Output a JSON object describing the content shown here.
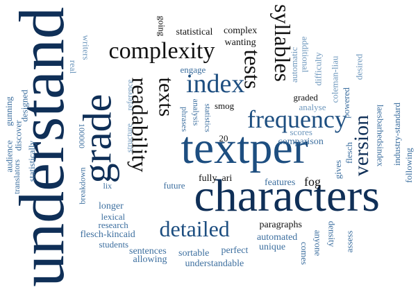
{
  "cloud": {
    "words": {
      "understand": "understand",
      "characters": "characters",
      "textper": "textper",
      "grade": "grade",
      "complexity": "complexity",
      "index": "index",
      "frequency": "frequency",
      "readability": "readability",
      "texts": "texts",
      "tests": "tests",
      "syllables": "syllables",
      "detailed": "detailed",
      "version": "version",
      "statistical": "statistical",
      "complex": "complex",
      "wanting": "wanting",
      "going": "going",
      "writers": "writers",
      "real": "real",
      "engage": "engage",
      "reference": "reference",
      "structure": "structure",
      "statistics": "statistics",
      "analysis": "analysis",
      "phrases": "phrases",
      "smog": "smog",
      "designed": "designed",
      "gunning": "gunning",
      "audience": "audience",
      "translators": "translators",
      "discover": "discover",
      "statistically": "statistically",
      "n100000": "100000",
      "breakdown": "breakdown",
      "lix": "lix",
      "longer": "longer",
      "lexical": "lexical",
      "research": "research",
      "flesch_kincaid": "flesch-kincaid",
      "students": "students",
      "sentences": "sentences",
      "allowing": "allowing",
      "sortable": "sortable",
      "perfect": "perfect",
      "understandable": "understandable",
      "automated": "automated",
      "unique": "unique",
      "paragraphs": "paragraphs",
      "features": "features",
      "fog": "fog",
      "fully": "fully",
      "ari": "ari",
      "future": "future",
      "comparison": "comparison",
      "scores": "scores",
      "n20": "20",
      "automatic": "automatic",
      "additional": "additional",
      "difficulty": "difficulty",
      "graded": "graded",
      "analyse": "analyse",
      "coleman_liau": "coleman-liau",
      "powered": "powered",
      "desired": "desired",
      "laesbarhedsindex": "laesbarhedsindex",
      "industry_standard": "industry-standard",
      "following": "following",
      "gives": "gives",
      "flesch": "flesch",
      "density": "density",
      "anyone": "anyone",
      "comes": "comes",
      "assess": "assess"
    },
    "palette": {
      "dark": "#0f2f57",
      "navy": "#1d4e80",
      "blue": "#3d6f9f",
      "light": "#6f98bd",
      "pale": "#9dbad4",
      "black": "#111111"
    }
  }
}
